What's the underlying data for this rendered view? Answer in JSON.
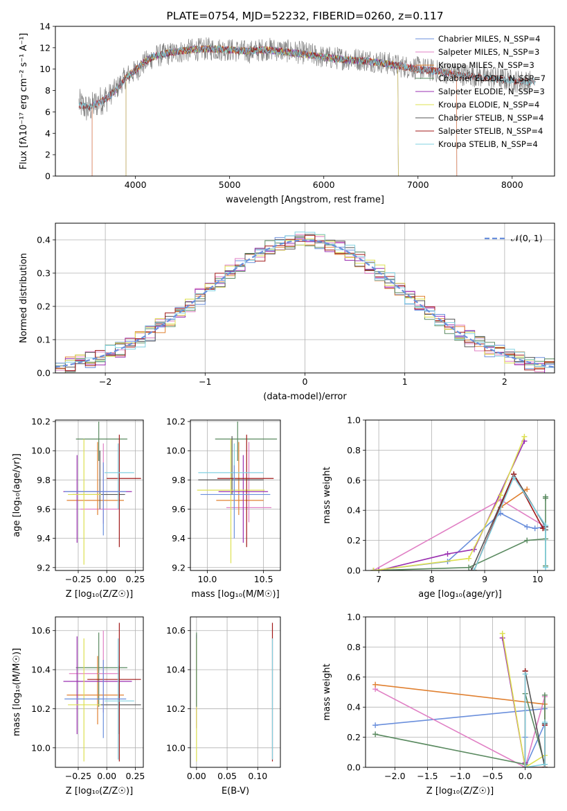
{
  "colors": {
    "chabrier_miles": "#6a8fdc",
    "salpeter_miles": "#e07fc4",
    "kroupa_miles": "#e08030",
    "chabrier_elodie": "#5a8a60",
    "salpeter_elodie": "#9a2fb0",
    "kroupa_elodie": "#dde050",
    "chabrier_stelib": "#555555",
    "salpeter_stelib": "#a01818",
    "kroupa_stelib": "#80d0e0",
    "spectrum_gray": "#808080"
  },
  "chart_data": [
    {
      "id": "spectrum",
      "type": "line",
      "title": "PLATE=0754, MJD=52232, FIBERID=0260, z=0.117",
      "xlabel": "wavelength [Angstrom, rest frame]",
      "ylabel": "Flux [fλ10⁻¹⁷ erg cm⁻² s⁻¹ A⁻¹]",
      "xlim": [
        3150,
        8450
      ],
      "ylim": [
        0,
        14
      ],
      "xticks": [
        4000,
        5000,
        6000,
        7000,
        8000
      ],
      "yticks": [
        0,
        2,
        4,
        6,
        8,
        10,
        12,
        14
      ],
      "grid": false,
      "legend_position": "top-right",
      "legend": [
        {
          "label": "Chabrier MILES, N_SSP=4",
          "color": "chabrier_miles"
        },
        {
          "label": "Salpeter MILES, N_SSP=3",
          "color": "salpeter_miles"
        },
        {
          "label": "Kroupa MILES, N_SSP=3",
          "color": "kroupa_miles"
        },
        {
          "label": "Chabrier ELODIE, N_SSP=7",
          "color": "chabrier_elodie"
        },
        {
          "label": "Salpeter ELODIE, N_SSP=3",
          "color": "salpeter_elodie"
        },
        {
          "label": "Kroupa ELODIE, N_SSP=4",
          "color": "kroupa_elodie"
        },
        {
          "label": "Chabrier STELIB, N_SSP=4",
          "color": "chabrier_stelib"
        },
        {
          "label": "Salpeter STELIB, N_SSP=4",
          "color": "salpeter_stelib"
        },
        {
          "label": "Kroupa STELIB, N_SSP=4",
          "color": "kroupa_stelib"
        }
      ],
      "data_spectrum": {
        "x": [
          3400,
          3500,
          3600,
          3700,
          3800,
          3900,
          4000,
          4100,
          4200,
          4400,
          4600,
          4800,
          5000,
          5200,
          5400,
          5600,
          5800,
          6000,
          6200,
          6400,
          6600,
          6800,
          7000,
          7200,
          7400,
          7600,
          7800,
          8000,
          8200
        ],
        "y": [
          6.8,
          6.2,
          6.9,
          7.4,
          8.2,
          9.3,
          9.8,
          10.6,
          11.2,
          11.5,
          11.8,
          11.9,
          11.8,
          11.6,
          11.9,
          11.7,
          11.5,
          11.1,
          11.0,
          10.9,
          10.7,
          10.3,
          10.1,
          9.8,
          9.6,
          9.4,
          9.2,
          8.9,
          8.8
        ],
        "noise_amp": 1.1
      },
      "model_spectrum": {
        "x": [
          3400,
          3500,
          3600,
          3700,
          3800,
          3900,
          4000,
          4100,
          4200,
          4400,
          4600,
          4800,
          5000,
          5200,
          5400,
          5600,
          5800,
          6000,
          6200,
          6400,
          6600,
          6800,
          7000,
          7200,
          7400,
          7600,
          7800,
          8000,
          8200
        ],
        "y": [
          6.7,
          6.4,
          6.8,
          7.3,
          8.1,
          9.2,
          9.9,
          10.7,
          11.2,
          11.6,
          11.8,
          11.9,
          11.8,
          11.7,
          11.8,
          11.6,
          11.4,
          11.1,
          10.9,
          10.8,
          10.6,
          10.3,
          10.0,
          9.8,
          9.5,
          9.3,
          9.1,
          8.9,
          8.8
        ],
        "noise_amp": 0.35
      }
    },
    {
      "id": "residuals",
      "type": "line",
      "xlabel": "(data-model)/error",
      "ylabel": "Normed distribution",
      "xlim": [
        -2.5,
        2.5
      ],
      "ylim": [
        0,
        0.45
      ],
      "xticks": [
        -2,
        -1,
        0,
        1,
        2
      ],
      "ytick_values": [
        0.0,
        0.1,
        0.2,
        0.3,
        0.4
      ],
      "ytick_labels": [
        "0.0",
        "0.1",
        "0.2",
        "0.3",
        "0.4"
      ],
      "xtick_labels": [
        "−2",
        "−1",
        "0",
        "1",
        "2"
      ],
      "grid": true,
      "legend_position": "top-right",
      "legend_label": "𝒩(0, 1)",
      "legend_color": "#6a8fdc",
      "bin_width": 0.1,
      "bin_start": -2.5
    },
    {
      "id": "z-age",
      "type": "scatter",
      "xlabel": "Z [log₁₀(Z/Z☉)]",
      "ylabel": "age  [log₁₀(age/yr)]",
      "xlim": [
        -0.45,
        0.32
      ],
      "ylim": [
        9.18,
        10.21
      ],
      "xticks": [
        -0.25,
        0.0,
        0.25
      ],
      "xtick_labels": [
        "−0.25",
        "0.00",
        "0.25"
      ],
      "yticks": [
        9.2,
        9.4,
        9.6,
        9.8,
        10.0,
        10.2
      ],
      "ytick_labels": [
        "9.2",
        "9.4",
        "9.6",
        "9.8",
        "10.0",
        "10.2"
      ],
      "grid": true,
      "points": [
        {
          "color": "chabrier_elodie",
          "x": -0.07,
          "y": 10.08,
          "xl": 0.2,
          "xr": 0.25,
          "yl": 0.15,
          "yu": 0.12
        },
        {
          "color": "salpeter_miles",
          "x": -0.03,
          "y": 9.6,
          "xl": 0.2,
          "xr": 0.14,
          "yl": 0.1,
          "yu": 0.45
        },
        {
          "color": "kroupa_miles",
          "x": -0.08,
          "y": 9.66,
          "xl": 0.27,
          "xr": 0.23,
          "yl": 0.1,
          "yu": 0.4
        },
        {
          "color": "chabrier_stelib",
          "x": -0.06,
          "y": 9.7,
          "xl": 0.24,
          "xr": 0.22,
          "yl": 0.1,
          "yu": 0.3
        },
        {
          "color": "salpeter_elodie",
          "x": -0.26,
          "y": 9.72,
          "xl": 0.12,
          "xr": 0.48,
          "yl": 0.35,
          "yu": 0.25
        },
        {
          "color": "kroupa_elodie",
          "x": -0.2,
          "y": 9.7,
          "xl": 0.14,
          "xr": 0.15,
          "yl": 0.48,
          "yu": 0.38
        },
        {
          "color": "salpeter_stelib",
          "x": 0.11,
          "y": 9.81,
          "xl": 0.11,
          "xr": 0.19,
          "yl": 0.47,
          "yu": 0.3
        },
        {
          "color": "kroupa_stelib",
          "x": 0.1,
          "y": 9.85,
          "xl": 0.12,
          "xr": 0.14,
          "yl": 0.25,
          "yu": 0.2
        },
        {
          "color": "chabrier_miles",
          "x": -0.03,
          "y": 9.72,
          "xl": 0.34,
          "xr": 0.2,
          "yl": 0.3,
          "yu": 0.2
        }
      ]
    },
    {
      "id": "mass-age",
      "type": "scatter",
      "xlabel": "mass [log₁₀(M/M☉)]",
      "ylabel": "",
      "xlim": [
        9.85,
        10.65
      ],
      "ylim": [
        9.18,
        10.21
      ],
      "xticks": [
        10.0,
        10.5
      ],
      "xtick_labels": [
        "10.0",
        "10.5"
      ],
      "yticks": [
        9.2,
        9.4,
        9.6,
        9.8,
        10.0,
        10.2
      ],
      "ytick_labels": [
        "9.2",
        "9.4",
        "9.6",
        "9.8",
        "10.0",
        "10.2"
      ],
      "grid": true,
      "points": [
        {
          "color": "chabrier_elodie",
          "x": 10.27,
          "y": 10.08,
          "xl": 0.2,
          "xr": 0.35,
          "yl": 0.15,
          "yu": 0.12
        },
        {
          "color": "salpeter_miles",
          "x": 10.37,
          "y": 9.61,
          "xl": 0.2,
          "xr": 0.2,
          "yl": 0.1,
          "yu": 0.45
        },
        {
          "color": "kroupa_miles",
          "x": 10.28,
          "y": 9.66,
          "xl": 0.2,
          "xr": 0.22,
          "yl": 0.1,
          "yu": 0.4
        },
        {
          "color": "chabrier_stelib",
          "x": 10.22,
          "y": 9.8,
          "xl": 0.3,
          "xr": 0.28,
          "yl": 0.1,
          "yu": 0.3
        },
        {
          "color": "salpeter_elodie",
          "x": 10.32,
          "y": 9.72,
          "xl": 0.22,
          "xr": 0.22,
          "yl": 0.35,
          "yu": 0.25
        },
        {
          "color": "kroupa_elodie",
          "x": 10.21,
          "y": 9.73,
          "xl": 0.3,
          "xr": 0.3,
          "yl": 0.5,
          "yu": 0.35
        },
        {
          "color": "salpeter_stelib",
          "x": 10.35,
          "y": 9.81,
          "xl": 0.26,
          "xr": 0.24,
          "yl": 0.47,
          "yu": 0.3
        },
        {
          "color": "kroupa_stelib",
          "x": 10.24,
          "y": 9.85,
          "xl": 0.32,
          "xr": 0.26,
          "yl": 0.25,
          "yu": 0.2
        },
        {
          "color": "chabrier_miles",
          "x": 10.24,
          "y": 9.7,
          "xl": 0.3,
          "xr": 0.32,
          "yl": 0.3,
          "yu": 0.2
        }
      ]
    },
    {
      "id": "age-weight",
      "type": "line",
      "xlabel": "age  [log₁₀(age/yr)]",
      "ylabel": "mass weight",
      "xlim": [
        6.75,
        10.32
      ],
      "ylim": [
        0,
        1.0
      ],
      "xticks": [
        7,
        8,
        9,
        10
      ],
      "yticks": [
        0.0,
        0.2,
        0.4,
        0.6,
        0.8,
        1.0
      ],
      "ytick_labels": [
        "0.0",
        "0.2",
        "0.4",
        "0.6",
        "0.8",
        "1.0"
      ],
      "grid": true,
      "series": [
        {
          "color": "chabrier_miles",
          "x": [
            6.9,
            8.3,
            9.3,
            9.8,
            9.95,
            10.15
          ],
          "y": [
            0.0,
            0.06,
            0.38,
            0.29,
            0.28,
            0.29
          ]
        },
        {
          "color": "salpeter_miles",
          "x": [
            6.9,
            9.3,
            10.15
          ],
          "y": [
            0.0,
            0.47,
            0.29
          ]
        },
        {
          "color": "kroupa_miles",
          "x": [
            8.8,
            9.3,
            9.8
          ],
          "y": [
            0.0,
            0.42,
            0.54
          ]
        },
        {
          "color": "chabrier_elodie",
          "x": [
            6.9,
            8.7,
            9.8,
            10.15,
            10.15,
            10.15,
            10.15
          ],
          "y": [
            0.0,
            0.02,
            0.2,
            0.21,
            0.49,
            0.03,
            0.48
          ]
        },
        {
          "color": "salpeter_elodie",
          "x": [
            7.0,
            8.3,
            8.8,
            9.75
          ],
          "y": [
            0.0,
            0.11,
            0.14,
            0.86
          ]
        },
        {
          "color": "kroupa_elodie",
          "x": [
            6.9,
            8.7,
            9.3,
            9.75
          ],
          "y": [
            0.0,
            0.08,
            0.5,
            0.89
          ]
        },
        {
          "color": "chabrier_stelib",
          "x": [
            8.75,
            9.55,
            10.15,
            10.15
          ],
          "y": [
            0.0,
            0.64,
            0.29,
            0.27
          ]
        },
        {
          "color": "salpeter_stelib",
          "x": [
            8.8,
            9.55,
            10.1
          ],
          "y": [
            0.0,
            0.64,
            0.28
          ]
        },
        {
          "color": "kroupa_stelib",
          "x": [
            8.8,
            9.55,
            10.15,
            10.15
          ],
          "y": [
            0.0,
            0.62,
            0.3,
            0.02
          ]
        }
      ]
    },
    {
      "id": "z-mass",
      "type": "scatter",
      "xlabel": "Z [log₁₀(Z/Z☉)]",
      "ylabel": "mass [log₁₀(M/M☉)]",
      "xlim": [
        -0.45,
        0.32
      ],
      "ylim": [
        9.9,
        10.67
      ],
      "xticks": [
        -0.25,
        0.0,
        0.25
      ],
      "xtick_labels": [
        "−0.25",
        "0.00",
        "0.25"
      ],
      "yticks": [
        10.0,
        10.2,
        10.4,
        10.6
      ],
      "ytick_labels": [
        "10.0",
        "10.2",
        "10.4",
        "10.6"
      ],
      "grid": true,
      "points": [
        {
          "color": "chabrier_elodie",
          "x": -0.07,
          "y": 10.41,
          "xl": 0.2,
          "xr": 0.25,
          "yl": 0.2,
          "yu": 0.18
        },
        {
          "color": "salpeter_miles",
          "x": -0.03,
          "y": 10.38,
          "xl": 0.3,
          "xr": 0.14,
          "yl": 0.2,
          "yu": 0.22
        },
        {
          "color": "kroupa_miles",
          "x": -0.08,
          "y": 10.27,
          "xl": 0.27,
          "xr": 0.23,
          "yl": 0.15,
          "yu": 0.2
        },
        {
          "color": "chabrier_stelib",
          "x": 0.11,
          "y": 10.22,
          "xl": 0.17,
          "xr": 0.19,
          "yl": 0.15,
          "yu": 0.2
        },
        {
          "color": "salpeter_elodie",
          "x": -0.26,
          "y": 10.34,
          "xl": 0.12,
          "xr": 0.48,
          "yl": 0.27,
          "yu": 0.23
        },
        {
          "color": "kroupa_elodie",
          "x": -0.2,
          "y": 10.22,
          "xl": 0.14,
          "xr": 0.15,
          "yl": 0.29,
          "yu": 0.34
        },
        {
          "color": "salpeter_stelib",
          "x": 0.11,
          "y": 10.35,
          "xl": 0.28,
          "xr": 0.19,
          "yl": 0.42,
          "yu": 0.29
        },
        {
          "color": "kroupa_stelib",
          "x": 0.1,
          "y": 10.24,
          "xl": 0.12,
          "xr": 0.14,
          "yl": 0.3,
          "yu": 0.32
        },
        {
          "color": "chabrier_miles",
          "x": -0.03,
          "y": 10.25,
          "xl": 0.34,
          "xr": 0.2,
          "yl": 0.2,
          "yu": 0.2
        }
      ]
    },
    {
      "id": "ebv-mass",
      "type": "scatter",
      "xlabel": "E(B-V)",
      "ylabel": "",
      "xlim": [
        -0.01,
        0.137
      ],
      "ylim": [
        9.9,
        10.67
      ],
      "xticks": [
        0.0,
        0.05,
        0.1
      ],
      "xtick_labels": [
        "0.00",
        "0.05",
        "0.10"
      ],
      "yticks": [
        10.0,
        10.2,
        10.4,
        10.6
      ],
      "ytick_labels": [
        "10.0",
        "10.2",
        "10.4",
        "10.6"
      ],
      "grid": true,
      "points": [
        {
          "color": "salpeter_elodie",
          "x": 0.0,
          "y": 10.35,
          "xl": 0,
          "xr": 0,
          "yl": 0.25,
          "yu": 0.23
        },
        {
          "color": "kroupa_elodie",
          "x": 0.0,
          "y": 10.22,
          "xl": 0,
          "xr": 0,
          "yl": 0.29,
          "yu": 0.34
        },
        {
          "color": "chabrier_elodie",
          "x": 0.0,
          "y": 10.41,
          "xl": 0,
          "xr": 0,
          "yl": 0.2,
          "yu": 0.18
        },
        {
          "color": "salpeter_stelib",
          "x": 0.124,
          "y": 10.35,
          "xl": 0,
          "xr": 0,
          "yl": 0.42,
          "yu": 0.29
        },
        {
          "color": "kroupa_stelib",
          "x": 0.124,
          "y": 10.24,
          "xl": 0,
          "xr": 0,
          "yl": 0.3,
          "yu": 0.32
        }
      ]
    },
    {
      "id": "z-weight",
      "type": "line",
      "xlabel": "Z [log₁₀(Z/Z☉)]",
      "ylabel": "mass weight",
      "xlim": [
        -2.45,
        0.45
      ],
      "ylim": [
        0,
        1.0
      ],
      "xticks": [
        -2.0,
        -1.5,
        -1.0,
        -0.5,
        0.0
      ],
      "xtick_labels": [
        "−2.0",
        "−1.5",
        "−1.0",
        "−0.5",
        "0.0"
      ],
      "yticks": [
        0.0,
        0.2,
        0.4,
        0.6,
        0.8,
        1.0
      ],
      "ytick_labels": [
        "0.0",
        "0.2",
        "0.4",
        "0.6",
        "0.8",
        "1.0"
      ],
      "grid": true,
      "series": [
        {
          "color": "chabrier_miles",
          "x": [
            -2.3,
            0.3,
            0.3,
            0.0,
            0.0
          ],
          "y": [
            0.28,
            0.39,
            0.29,
            0.0,
            0.2
          ]
        },
        {
          "color": "salpeter_miles",
          "x": [
            -2.3,
            0.0,
            0.3
          ],
          "y": [
            0.52,
            0.0,
            0.47
          ]
        },
        {
          "color": "kroupa_miles",
          "x": [
            -2.3,
            0.3,
            0.3
          ],
          "y": [
            0.55,
            0.42,
            0.02
          ]
        },
        {
          "color": "chabrier_elodie",
          "x": [
            -2.3,
            0.0,
            0.0,
            0.3,
            0.3
          ],
          "y": [
            0.22,
            0.02,
            0.49,
            0.02,
            0.48
          ]
        },
        {
          "color": "salpeter_elodie",
          "x": [
            -0.35,
            0.0,
            0.0
          ],
          "y": [
            0.86,
            0.0,
            0.03
          ]
        },
        {
          "color": "kroupa_elodie",
          "x": [
            -0.35,
            0.0,
            0.3,
            0.3
          ],
          "y": [
            0.89,
            0.0,
            0.08,
            0.0
          ]
        },
        {
          "color": "chabrier_stelib",
          "x": [
            0.0,
            0.3,
            0.3
          ],
          "y": [
            0.64,
            0.0,
            0.29
          ]
        },
        {
          "color": "salpeter_stelib",
          "x": [
            0.0,
            0.0,
            0.3,
            0.3
          ],
          "y": [
            0.64,
            0.0,
            0.0,
            0.28
          ]
        },
        {
          "color": "kroupa_stelib",
          "x": [
            0.0,
            0.0,
            0.3,
            0.3
          ],
          "y": [
            0.62,
            0.0,
            0.02,
            0.3
          ]
        }
      ]
    }
  ]
}
